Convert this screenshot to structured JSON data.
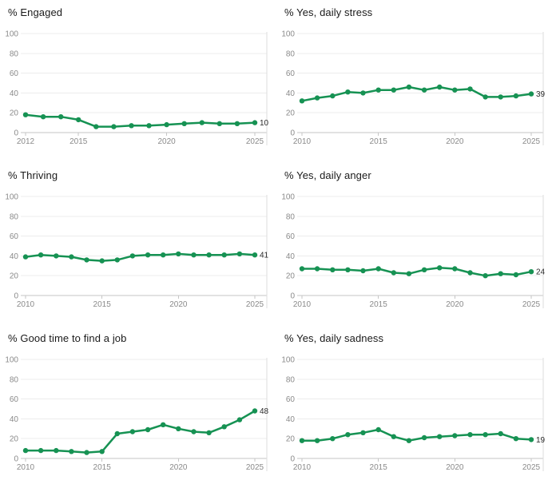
{
  "colors": {
    "line": "#169253",
    "marker": "#169253",
    "grid": "#ececec",
    "axis_line": "#c6c6c6",
    "plot_border": "#dedede",
    "tick_mark": "#c6c6c6",
    "tick_label": "#8a8a8a",
    "value_label": "#2b2b2b",
    "title": "#1a1a1a",
    "background": "#ffffff"
  },
  "chart_data": [
    {
      "type": "line",
      "title": "% Engaged",
      "x": [
        2012,
        2013,
        2014,
        2015,
        2016,
        2017,
        2018,
        2019,
        2020,
        2021,
        2022,
        2023,
        2024,
        2025
      ],
      "values": [
        18,
        16,
        16,
        13,
        6,
        6,
        7,
        7,
        8,
        9,
        10,
        9,
        9,
        10
      ],
      "end_label": "10",
      "x_ticks": [
        2012,
        2015,
        2020,
        2025
      ],
      "y_ticks": [
        0,
        20,
        40,
        60,
        80,
        100
      ],
      "ylim": [
        0,
        100
      ],
      "grid": "horizontal",
      "legend": "none"
    },
    {
      "type": "line",
      "title": "% Yes, daily stress",
      "x": [
        2010,
        2011,
        2012,
        2013,
        2014,
        2015,
        2016,
        2017,
        2018,
        2019,
        2020,
        2021,
        2022,
        2023,
        2024,
        2025
      ],
      "values": [
        32,
        35,
        37,
        41,
        40,
        43,
        43,
        46,
        43,
        46,
        43,
        44,
        36,
        36,
        37,
        39
      ],
      "end_label": "39",
      "x_ticks": [
        2010,
        2015,
        2020,
        2025
      ],
      "y_ticks": [
        0,
        20,
        40,
        60,
        80,
        100
      ],
      "ylim": [
        0,
        100
      ],
      "grid": "horizontal",
      "legend": "none"
    },
    {
      "type": "line",
      "title": "% Thriving",
      "x": [
        2010,
        2011,
        2012,
        2013,
        2014,
        2015,
        2016,
        2017,
        2018,
        2019,
        2020,
        2021,
        2022,
        2023,
        2024,
        2025
      ],
      "values": [
        39,
        41,
        40,
        39,
        36,
        35,
        36,
        40,
        41,
        41,
        42,
        41,
        41,
        41,
        42,
        41
      ],
      "end_label": "41",
      "x_ticks": [
        2010,
        2015,
        2020,
        2025
      ],
      "y_ticks": [
        0,
        20,
        40,
        60,
        80,
        100
      ],
      "ylim": [
        0,
        100
      ],
      "grid": "horizontal",
      "legend": "none"
    },
    {
      "type": "line",
      "title": "% Yes, daily anger",
      "x": [
        2010,
        2011,
        2012,
        2013,
        2014,
        2015,
        2016,
        2017,
        2018,
        2019,
        2020,
        2021,
        2022,
        2023,
        2024,
        2025
      ],
      "values": [
        27,
        27,
        26,
        26,
        25,
        27,
        23,
        22,
        26,
        28,
        27,
        23,
        20,
        22,
        21,
        24
      ],
      "end_label": "24",
      "x_ticks": [
        2010,
        2015,
        2020,
        2025
      ],
      "y_ticks": [
        0,
        20,
        40,
        60,
        80,
        100
      ],
      "ylim": [
        0,
        100
      ],
      "grid": "horizontal",
      "legend": "none"
    },
    {
      "type": "line",
      "title": "% Good time to find a job",
      "x": [
        2010,
        2011,
        2012,
        2013,
        2014,
        2015,
        2016,
        2017,
        2018,
        2019,
        2020,
        2021,
        2022,
        2023,
        2024,
        2025
      ],
      "values": [
        8,
        8,
        8,
        7,
        6,
        7,
        25,
        27,
        29,
        34,
        30,
        27,
        26,
        32,
        39,
        48
      ],
      "end_label": "48",
      "x_ticks": [
        2010,
        2015,
        2020,
        2025
      ],
      "y_ticks": [
        0,
        20,
        40,
        60,
        80,
        100
      ],
      "ylim": [
        0,
        100
      ],
      "grid": "horizontal",
      "legend": "none"
    },
    {
      "type": "line",
      "title": "% Yes, daily sadness",
      "x": [
        2010,
        2011,
        2012,
        2013,
        2014,
        2015,
        2016,
        2017,
        2018,
        2019,
        2020,
        2021,
        2022,
        2023,
        2024,
        2025
      ],
      "values": [
        18,
        18,
        20,
        24,
        26,
        29,
        22,
        18,
        21,
        22,
        23,
        24,
        24,
        25,
        20,
        19
      ],
      "end_label": "19",
      "x_ticks": [
        2010,
        2015,
        2020,
        2025
      ],
      "y_ticks": [
        0,
        20,
        40,
        60,
        80,
        100
      ],
      "ylim": [
        0,
        100
      ],
      "grid": "horizontal",
      "legend": "none"
    }
  ]
}
